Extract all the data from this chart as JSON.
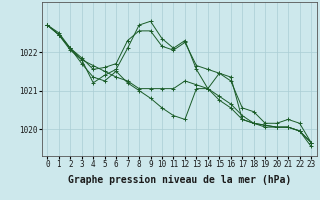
{
  "background_color": "#cde8ec",
  "grid_color": "#aacdd4",
  "line_color": "#1a5c28",
  "marker_color": "#1a5c28",
  "xlabel": "Graphe pression niveau de la mer (hPa)",
  "xlabel_fontsize": 7,
  "tick_fontsize": 5.5,
  "ylabel_ticks": [
    1020,
    1021,
    1022
  ],
  "xlim": [
    -0.5,
    23.5
  ],
  "ylim": [
    1019.3,
    1023.3
  ],
  "series": [
    [
      1022.7,
      1022.5,
      1022.1,
      1021.85,
      1021.55,
      1021.6,
      1021.7,
      1022.3,
      1022.55,
      1022.55,
      1022.15,
      1022.05,
      1022.25,
      1021.65,
      1021.55,
      1021.45,
      1021.35,
      1020.25,
      1020.15,
      1020.1,
      1020.05,
      1020.05,
      1019.95,
      1019.65
    ],
    [
      1022.7,
      1022.45,
      1022.1,
      1021.8,
      1021.65,
      1021.5,
      1021.35,
      1021.25,
      1021.05,
      1021.05,
      1021.05,
      1021.05,
      1021.25,
      1021.15,
      1021.05,
      1020.85,
      1020.65,
      1020.35,
      1020.15,
      1020.1,
      1020.05,
      1020.05,
      1019.95,
      1019.65
    ],
    [
      1022.7,
      1022.45,
      1022.1,
      1021.7,
      1021.35,
      1021.25,
      1021.5,
      1021.2,
      1021.0,
      1020.8,
      1020.55,
      1020.35,
      1020.25,
      1021.05,
      1021.05,
      1020.75,
      1020.55,
      1020.25,
      1020.15,
      1020.05,
      1020.05,
      1020.05,
      1019.95,
      1019.55
    ],
    [
      1022.7,
      1022.45,
      1022.05,
      1021.8,
      1021.2,
      1021.4,
      1021.55,
      1022.1,
      1022.7,
      1022.8,
      1022.35,
      1022.1,
      1022.3,
      1021.55,
      1021.05,
      1021.45,
      1021.25,
      1020.55,
      1020.45,
      1020.15,
      1020.15,
      1020.25,
      1020.15,
      1019.65
    ]
  ]
}
